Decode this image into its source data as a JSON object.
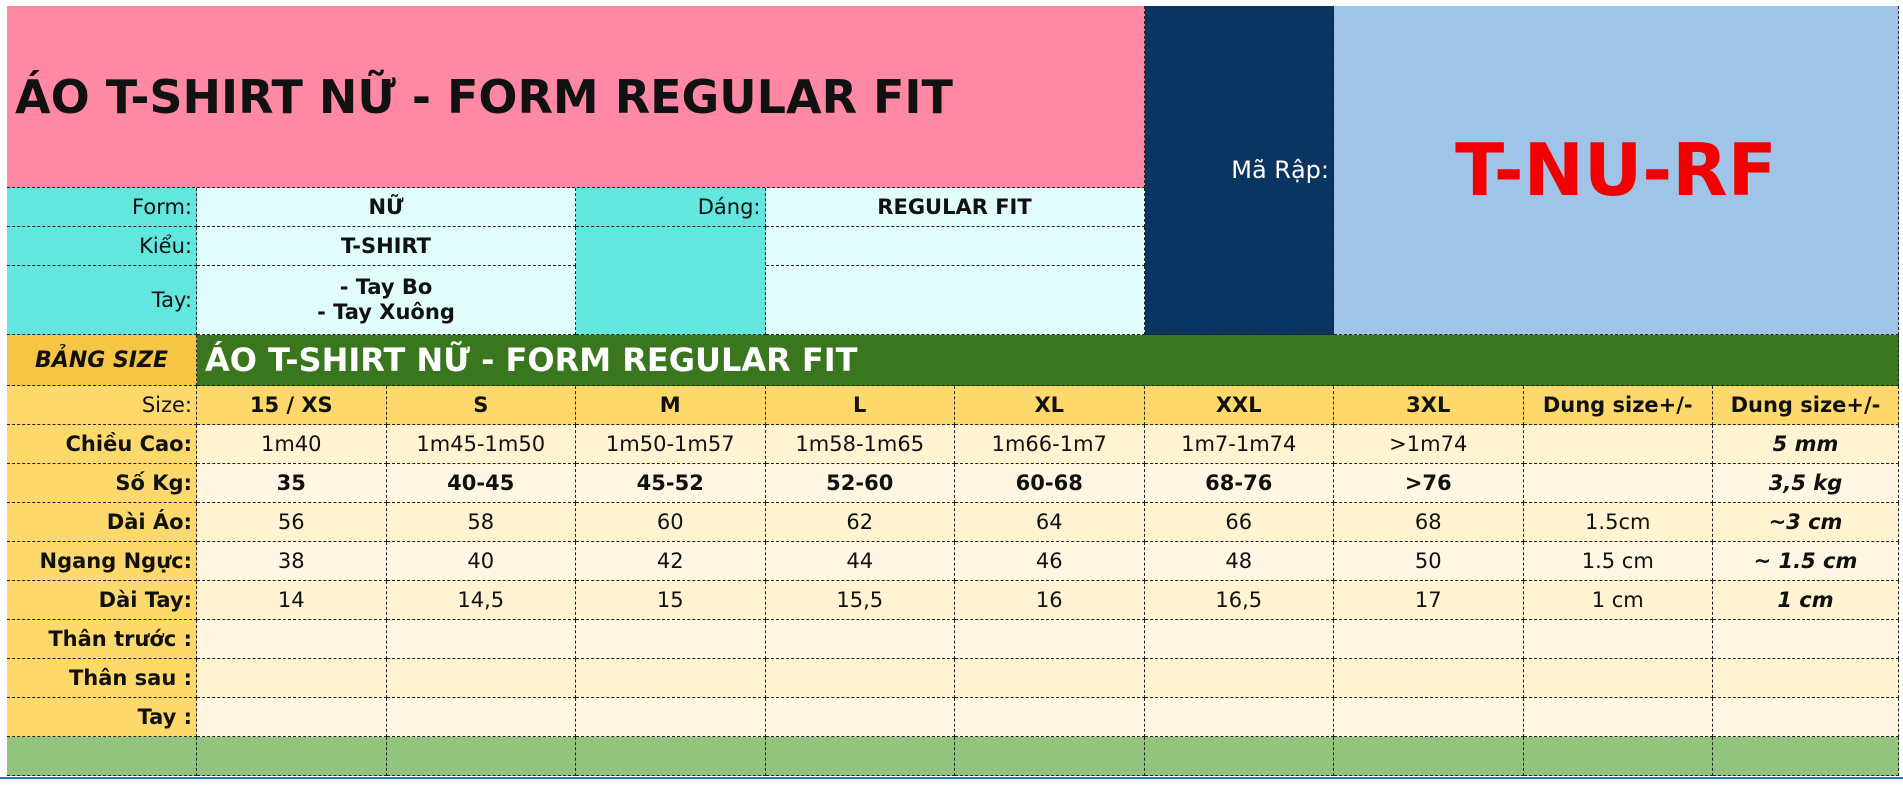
{
  "title": "ÁO T-SHIRT NỮ - FORM REGULAR FIT",
  "info": {
    "form_label": "Form:",
    "form_value": "NỮ",
    "dang_label": "Dáng:",
    "dang_value": "REGULAR FIT",
    "kieu_label": "Kiểu:",
    "kieu_value": "T-SHIRT",
    "tay_label": "Tay:",
    "tay_value_1": "- Tay Bo",
    "tay_value_2": "- Tay Xuông",
    "ma_rap_label": "Mã Rập:",
    "ma_rap_value": "T-NU-RF"
  },
  "size_table": {
    "label": "BẢNG SIZE",
    "title": "ÁO T-SHIRT NỮ - FORM REGULAR FIT",
    "header_label": "Size:",
    "headers": [
      "15 / XS",
      "S",
      "M",
      "L",
      "XL",
      "XXL",
      "3XL",
      "Dung size+/-",
      "Dung size+/-"
    ],
    "rows": [
      {
        "label": "Chiều Cao:",
        "values": [
          "1m40",
          "1m45-1m50",
          "1m50-1m57",
          "1m58-1m65",
          "1m66-1m7",
          "1m7-1m74",
          ">1m74",
          "",
          "5 mm"
        ],
        "bold": false
      },
      {
        "label": "Số Kg:",
        "values": [
          "35",
          "40-45",
          "45-52",
          "52-60",
          "60-68",
          "68-76",
          ">76",
          "",
          "3,5 kg"
        ],
        "bold": true
      },
      {
        "label": "Dài Áo:",
        "values": [
          "56",
          "58",
          "60",
          "62",
          "64",
          "66",
          "68",
          "1.5cm",
          "~3 cm"
        ],
        "bold": false
      },
      {
        "label": "Ngang Ngực:",
        "values": [
          "38",
          "40",
          "42",
          "44",
          "46",
          "48",
          "50",
          "1.5 cm",
          "~ 1.5 cm"
        ],
        "bold": false
      },
      {
        "label": "Dài Tay:",
        "values": [
          "14",
          "14,5",
          "15",
          "15,5",
          "16",
          "16,5",
          "17",
          "1 cm",
          "1 cm"
        ],
        "bold": false
      },
      {
        "label": "Thân trước :",
        "values": [
          "",
          "",
          "",
          "",
          "",
          "",
          "",
          "",
          ""
        ],
        "bold": false
      },
      {
        "label": "Thân sau :",
        "values": [
          "",
          "",
          "",
          "",
          "",
          "",
          "",
          "",
          ""
        ],
        "bold": false
      },
      {
        "label": "Tay :",
        "values": [
          "",
          "",
          "",
          "",
          "",
          "",
          "",
          "",
          ""
        ],
        "bold": false
      }
    ]
  },
  "colors": {
    "title_bg": "#ff88a4",
    "info_label_bg": "#63e6dd",
    "ma_rap_bg": "#0b3561",
    "code_bg": "#9fc4e7",
    "code_text": "#f20000",
    "table_title_bg": "#3a761e",
    "header_bg": "#fdd96c",
    "footer_bg": "#93c47d"
  }
}
